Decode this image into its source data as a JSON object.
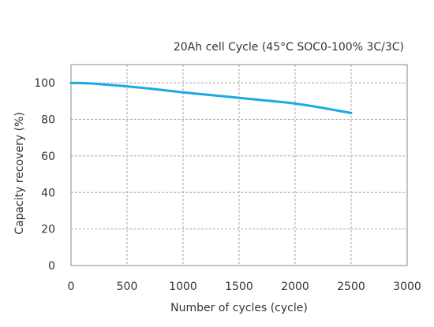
{
  "chart_data": {
    "type": "line",
    "title": "20Ah cell Cycle (45°C SOC0-100% 3C/3C)",
    "xlabel": "Number of cycles (cycle)",
    "ylabel": "Capacity recovery (%)",
    "xlim": [
      0,
      3000
    ],
    "ylim": [
      0,
      110
    ],
    "xticks": [
      0,
      500,
      1000,
      1500,
      2000,
      2500,
      3000
    ],
    "yticks": [
      0,
      20,
      40,
      60,
      80,
      100
    ],
    "grid": true,
    "series": [
      {
        "color": "#1aa9e4",
        "x": [
          0,
          100,
          200,
          300,
          400,
          500,
          600,
          700,
          800,
          900,
          1000,
          1100,
          1200,
          1300,
          1400,
          1500,
          1600,
          1700,
          1800,
          1900,
          2000,
          2100,
          2200,
          2300,
          2400,
          2500
        ],
        "y": [
          100,
          99.9,
          99.6,
          99.1,
          98.6,
          98.1,
          97.5,
          96.9,
          96.2,
          95.5,
          94.8,
          94.2,
          93.6,
          93.0,
          92.4,
          91.8,
          91.2,
          90.6,
          90.0,
          89.4,
          88.7,
          87.8,
          86.8,
          85.7,
          84.6,
          83.5
        ]
      }
    ]
  }
}
